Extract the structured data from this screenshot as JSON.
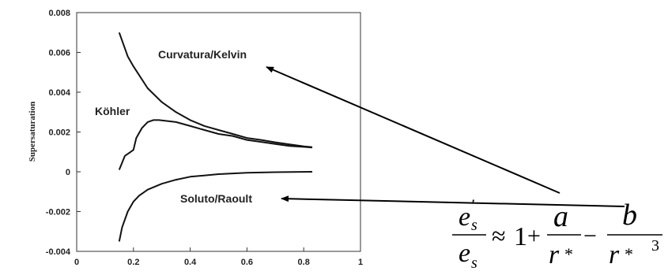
{
  "chart_data": {
    "type": "line",
    "title": "",
    "xlabel": "",
    "ylabel": "Supersaturation",
    "xlim": [
      0,
      1
    ],
    "ylim": [
      -0.004,
      0.008
    ],
    "x_ticks": [
      "0",
      "0.2",
      "0.4",
      "0.6",
      "0.8",
      "1"
    ],
    "y_ticks": [
      "0.008",
      "0.006",
      "0.004",
      "0.002",
      "0",
      "-0.002",
      "-0.004"
    ],
    "grid": false,
    "series": [
      {
        "name": "Curvatura/Kelvin",
        "x": [
          0.15,
          0.18,
          0.2,
          0.25,
          0.3,
          0.35,
          0.4,
          0.45,
          0.5,
          0.55,
          0.6,
          0.65,
          0.7,
          0.75,
          0.8,
          0.83
        ],
        "values": [
          0.007,
          0.0058,
          0.0053,
          0.0042,
          0.0035,
          0.003,
          0.0026,
          0.0023,
          0.0021,
          0.0019,
          0.0017,
          0.0016,
          0.00148,
          0.00138,
          0.00128,
          0.00124
        ]
      },
      {
        "name": "Köhler",
        "x": [
          0.15,
          0.17,
          0.19,
          0.2,
          0.21,
          0.23,
          0.25,
          0.27,
          0.29,
          0.32,
          0.35,
          0.4,
          0.45,
          0.5,
          0.55,
          0.6,
          0.65,
          0.7,
          0.75,
          0.8,
          0.83
        ],
        "values": [
          0.0001,
          0.0008,
          0.001,
          0.0011,
          0.0017,
          0.0022,
          0.0025,
          0.0026,
          0.0026,
          0.00255,
          0.0025,
          0.0023,
          0.0021,
          0.0019,
          0.0018,
          0.0016,
          0.0015,
          0.0014,
          0.0013,
          0.00125,
          0.00122
        ]
      },
      {
        "name": "Soluto/Raoult",
        "x": [
          0.15,
          0.16,
          0.18,
          0.2,
          0.22,
          0.25,
          0.3,
          0.35,
          0.4,
          0.5,
          0.6,
          0.7,
          0.83
        ],
        "values": [
          -0.0035,
          -0.0028,
          -0.002,
          -0.0015,
          -0.0012,
          -0.0009,
          -0.0006,
          -0.0004,
          -0.00025,
          -0.00012,
          -5e-05,
          -2e-05,
          0
        ]
      }
    ],
    "annotations": [
      "Curvatura/Kelvin",
      "Köhler",
      "Soluto/Raoult"
    ]
  },
  "equation": {
    "es_prime": "e",
    "prime_sub": "s",
    "prime_mark": "'",
    "es_den": "e",
    "den_sub": "s",
    "approx": "≈",
    "one": "1",
    "plus": "+",
    "minus": "−",
    "a": "a",
    "b": "b",
    "r1": "r",
    "r1_star": "*",
    "r2": "r",
    "r2_star": "*",
    "r2_exp": "3"
  },
  "colors": {
    "line": "#111111",
    "axis": "#333333",
    "arrow": "#000000"
  }
}
